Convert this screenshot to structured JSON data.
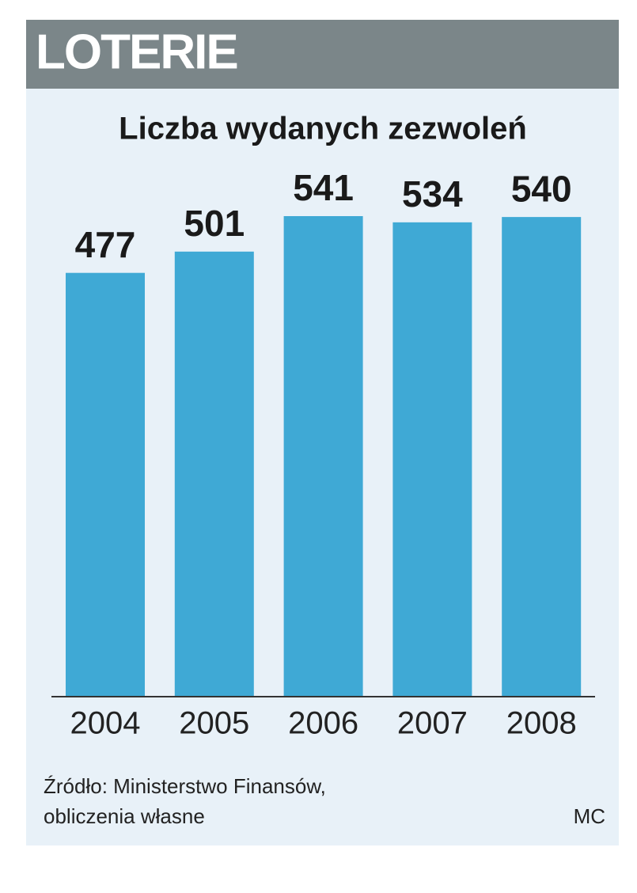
{
  "chart_data": {
    "type": "bar",
    "header": "LOTERIE",
    "title": "Liczba wydanych zezwoleń",
    "categories": [
      "2004",
      "2005",
      "2006",
      "2007",
      "2008"
    ],
    "values": [
      477,
      501,
      541,
      534,
      540
    ],
    "color": "#3fa9d5",
    "source": [
      "Źródło: Ministerstwo Finansów,",
      "obliczenia własne"
    ],
    "credit": "MC"
  }
}
